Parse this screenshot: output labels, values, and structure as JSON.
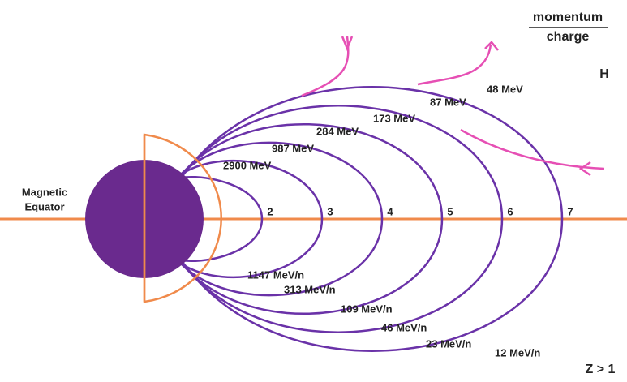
{
  "header": {
    "numerator": "momentum",
    "denominator": "charge",
    "upper_group": "H",
    "lower_group": "Z > 1"
  },
  "equator_label": [
    "Magnetic",
    "Equator"
  ],
  "shells": [
    {
      "L": 2,
      "upper_label": "2900 MeV",
      "lower_label": "1147 MeV/n"
    },
    {
      "L": 3,
      "upper_label": "987 MeV",
      "lower_label": "313 MeV/n"
    },
    {
      "L": 4,
      "upper_label": "284 MeV",
      "lower_label": "109 MeV/n"
    },
    {
      "L": 5,
      "upper_label": "173 MeV",
      "lower_label": "46 MeV/n"
    },
    {
      "L": 6,
      "upper_label": "87 MeV",
      "lower_label": "23 MeV/n"
    },
    {
      "L": 7,
      "upper_label": "48 MeV",
      "lower_label": "12 MeV/n"
    }
  ]
}
